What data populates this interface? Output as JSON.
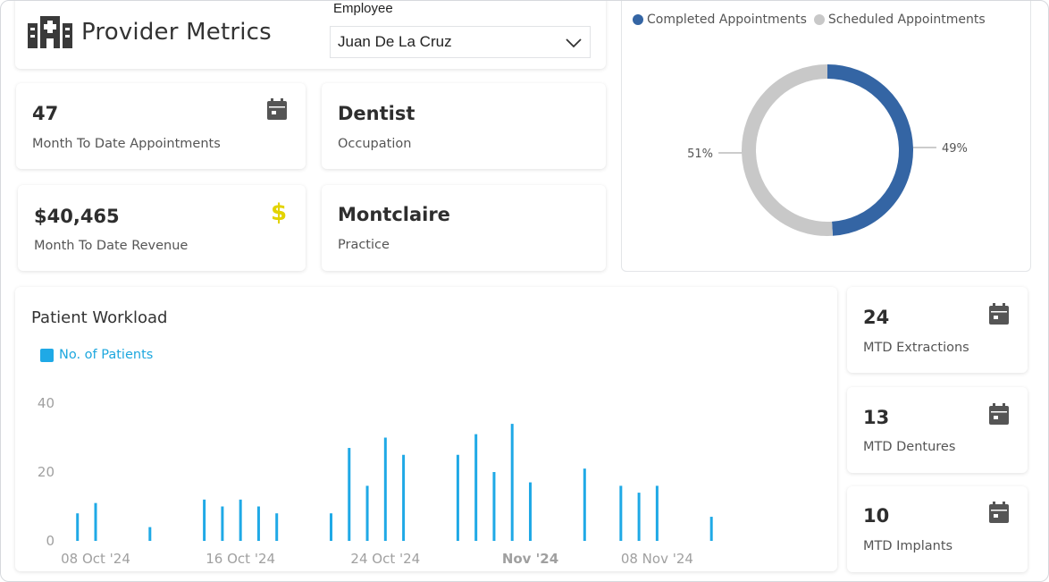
{
  "header": {
    "title": "Provider Metrics",
    "employee_label": "Employee",
    "employee_value": "Juan De La Cruz",
    "logo_icon": "hospital-icon"
  },
  "kpis": {
    "appointments": {
      "value": "47",
      "label": "Month To Date Appointments",
      "icon": "calendar-icon"
    },
    "occupation": {
      "value": "Dentist",
      "label": "Occupation"
    },
    "revenue": {
      "value": "$40,465",
      "label": "Month To Date Revenue",
      "icon": "dollar-icon",
      "icon_color": "#e3d300"
    },
    "practice": {
      "value": "Montclaire",
      "label": "Practice"
    },
    "extractions": {
      "value": "24",
      "label": "MTD Extractions",
      "icon": "calendar-icon"
    },
    "dentures": {
      "value": "13",
      "label": "MTD Dentures",
      "icon": "calendar-icon"
    },
    "implants": {
      "value": "10",
      "label": "MTD Implants",
      "icon": "calendar-icon"
    }
  },
  "donut": {
    "legend": [
      {
        "name": "Completed Appointments",
        "color": "#3465a4"
      },
      {
        "name": "Scheduled Appointments",
        "color": "#c8c8c8"
      }
    ]
  },
  "workload": {
    "title": "Patient Workload",
    "legend": "No. of Patients"
  },
  "chart_data": [
    {
      "type": "pie",
      "variant": "donut",
      "slices": [
        {
          "name": "Completed Appointments",
          "value": 49,
          "label": "49%",
          "color": "#3465a4"
        },
        {
          "name": "Scheduled Appointments",
          "value": 51,
          "label": "51%",
          "color": "#c8c8c8"
        }
      ],
      "legend_position": "top-left"
    },
    {
      "type": "bar",
      "title": "Patient Workload",
      "series": [
        {
          "name": "No. of Patients",
          "color": "#1fa9e6"
        }
      ],
      "x_start": "2024-10-08",
      "x_end": "2024-11-14",
      "x_ticks": [
        "08 Oct '24",
        "16 Oct '24",
        "24 Oct '24",
        "Nov '24",
        "08 Nov '24"
      ],
      "x_tick_dates": [
        "2024-10-08",
        "2024-10-16",
        "2024-10-24",
        "2024-11-01",
        "2024-11-08"
      ],
      "y_ticks": [
        "0",
        "20",
        "40"
      ],
      "ylim": [
        0,
        40
      ],
      "points": [
        {
          "date": "2024-10-07",
          "value": 8
        },
        {
          "date": "2024-10-08",
          "value": 11
        },
        {
          "date": "2024-10-11",
          "value": 4
        },
        {
          "date": "2024-10-14",
          "value": 12
        },
        {
          "date": "2024-10-15",
          "value": 10
        },
        {
          "date": "2024-10-16",
          "value": 12
        },
        {
          "date": "2024-10-17",
          "value": 10
        },
        {
          "date": "2024-10-18",
          "value": 8
        },
        {
          "date": "2024-10-21",
          "value": 8
        },
        {
          "date": "2024-10-22",
          "value": 27
        },
        {
          "date": "2024-10-23",
          "value": 16
        },
        {
          "date": "2024-10-24",
          "value": 30
        },
        {
          "date": "2024-10-25",
          "value": 25
        },
        {
          "date": "2024-10-28",
          "value": 25
        },
        {
          "date": "2024-10-29",
          "value": 31
        },
        {
          "date": "2024-10-30",
          "value": 20
        },
        {
          "date": "2024-10-31",
          "value": 34
        },
        {
          "date": "2024-11-01",
          "value": 17
        },
        {
          "date": "2024-11-04",
          "value": 21
        },
        {
          "date": "2024-11-06",
          "value": 16
        },
        {
          "date": "2024-11-07",
          "value": 14
        },
        {
          "date": "2024-11-08",
          "value": 16
        },
        {
          "date": "2024-11-11",
          "value": 7
        }
      ]
    }
  ]
}
